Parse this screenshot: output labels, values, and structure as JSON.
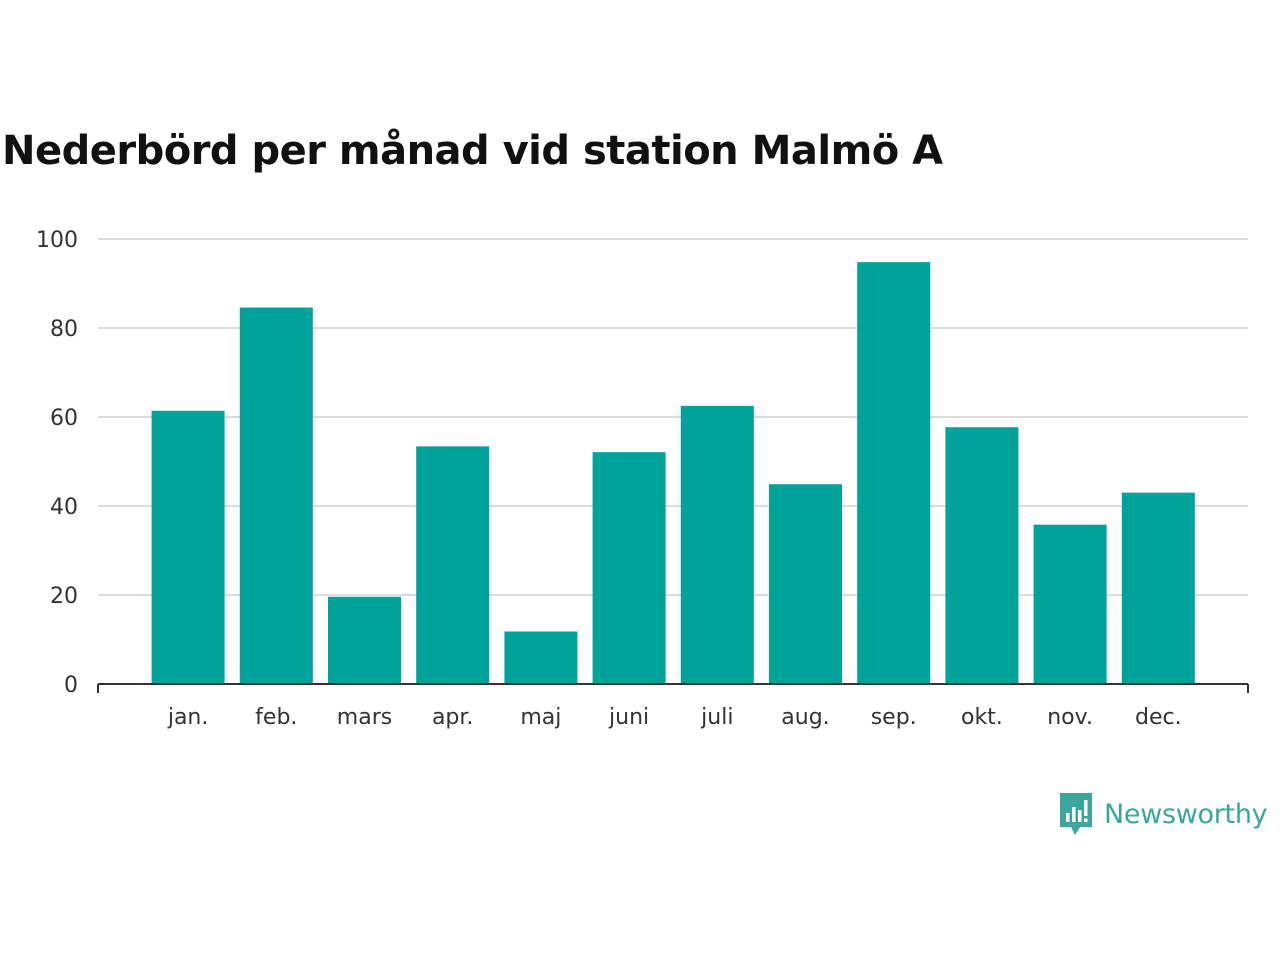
{
  "chart_data": {
    "type": "bar",
    "title": "Nederbörd per månad vid station Malmö A",
    "categories": [
      "jan.",
      "feb.",
      "mars",
      "apr.",
      "maj",
      "juni",
      "juli",
      "aug.",
      "sep.",
      "okt.",
      "nov.",
      "dec."
    ],
    "values": [
      61.4,
      84.6,
      19.6,
      53.4,
      11.8,
      52.1,
      62.5,
      44.9,
      94.8,
      57.7,
      35.8,
      43.0
    ],
    "yticks": [
      0,
      20,
      40,
      60,
      80,
      100
    ],
    "ylim": [
      0,
      100
    ],
    "xlabel": "",
    "ylabel": "",
    "grid": true,
    "bar_color": "#00a39a",
    "grid_color": "#dcdcdc",
    "axis_color": "#333333"
  },
  "brand": {
    "name": "Newsworthy",
    "color": "#3aa79a",
    "icon": "newsworthy-logo-icon"
  }
}
